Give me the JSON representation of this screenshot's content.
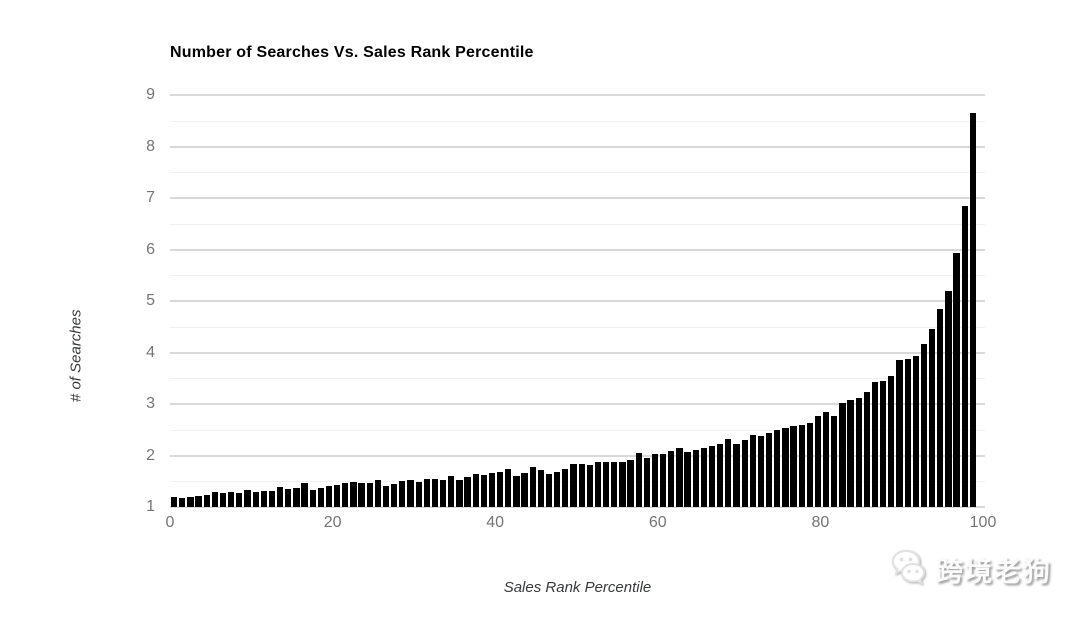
{
  "chart": {
    "title": "Number of Searches Vs. Sales Rank Percentile",
    "y_axis": {
      "title": "# of Searches"
    },
    "x_axis": {
      "title": "Sales Rank Percentile"
    }
  },
  "watermark": {
    "text": "跨境老狗",
    "icon": "wechat-icon"
  },
  "chart_data": {
    "type": "bar",
    "title": "Number of Searches Vs. Sales Rank Percentile",
    "xlabel": "Sales Rank Percentile",
    "ylabel": "# of Searches",
    "x_description": "sales rank percentile, one bar per percentile 1-99",
    "x_range": [
      1,
      99
    ],
    "ylim": [
      1,
      9
    ],
    "yticks": [
      9,
      8,
      7,
      6,
      5,
      4,
      3,
      2,
      1
    ],
    "xticks": [
      0,
      20,
      40,
      60,
      80,
      100
    ],
    "minor_gridline_step": 0.5,
    "grid": true,
    "legend": false,
    "values": [
      1.2,
      1.17,
      1.19,
      1.21,
      1.24,
      1.3,
      1.28,
      1.29,
      1.27,
      1.33,
      1.3,
      1.32,
      1.31,
      1.39,
      1.35,
      1.37,
      1.46,
      1.34,
      1.37,
      1.4,
      1.43,
      1.46,
      1.49,
      1.47,
      1.46,
      1.52,
      1.41,
      1.44,
      1.5,
      1.52,
      1.48,
      1.54,
      1.55,
      1.52,
      1.61,
      1.53,
      1.58,
      1.65,
      1.63,
      1.66,
      1.68,
      1.74,
      1.6,
      1.66,
      1.77,
      1.71,
      1.65,
      1.68,
      1.74,
      1.84,
      1.84,
      1.81,
      1.88,
      1.88,
      1.88,
      1.88,
      1.92,
      2.05,
      1.96,
      2.03,
      2.03,
      2.08,
      2.15,
      2.06,
      2.1,
      2.15,
      2.18,
      2.23,
      2.32,
      2.23,
      2.31,
      2.39,
      2.38,
      2.44,
      2.5,
      2.53,
      2.57,
      2.6,
      2.63,
      2.76,
      2.85,
      2.76,
      3.02,
      3.07,
      3.12,
      3.23,
      3.42,
      3.45,
      3.55,
      3.85,
      3.88,
      3.94,
      4.17,
      4.46,
      4.85,
      5.19,
      5.94,
      6.85,
      8.65
    ],
    "colors": {
      "bar": "#000000",
      "major_gridline": "#d9d9d9",
      "minor_gridline": "#f0f0f0",
      "tick_label": "#757575",
      "axis_title": "#38393b",
      "title": "#000000",
      "background": "#ffffff"
    }
  }
}
